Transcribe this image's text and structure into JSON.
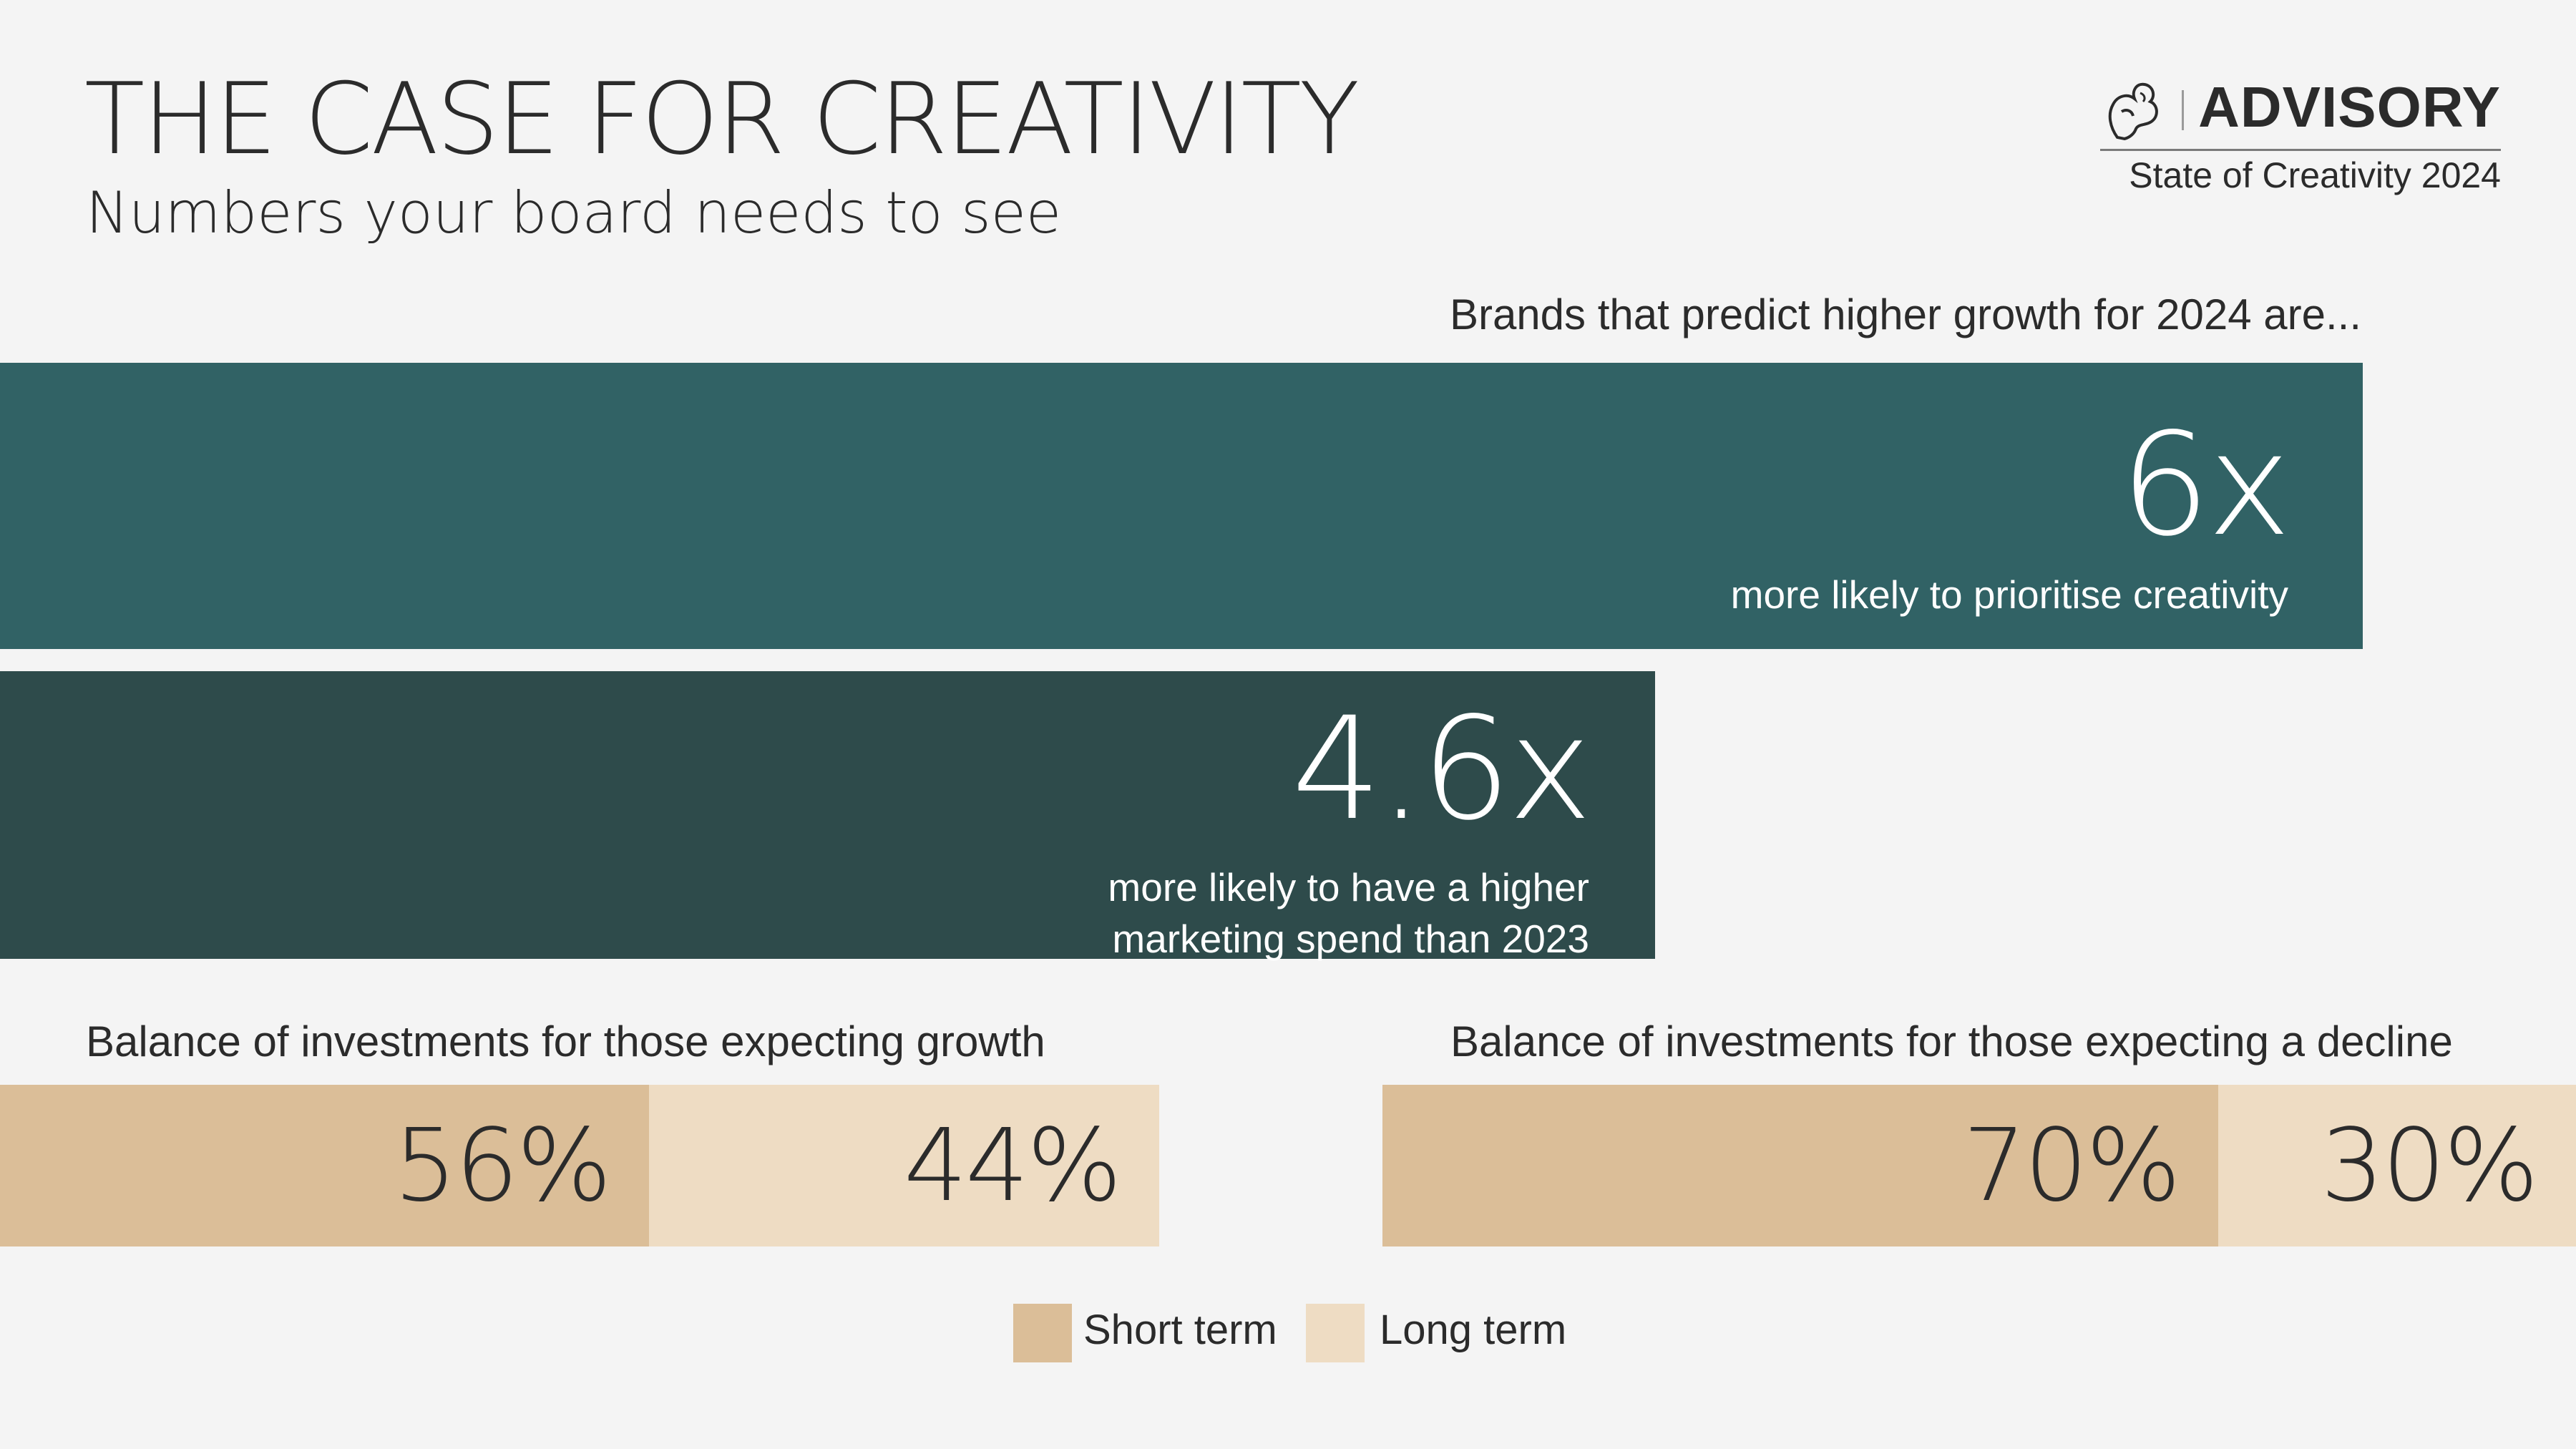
{
  "header": {
    "title": "THE CASE FOR CREATIVITY",
    "subtitle": "Numbers your board needs to see"
  },
  "brand": {
    "logo_icon": "lion-icon",
    "name": "ADVISORY",
    "report": "State of Creativity 2024"
  },
  "colors": {
    "background": "#f4f4f4",
    "teal": "#316265",
    "dark_teal": "#2e4b4b",
    "short_term": "#dbbe98",
    "long_term": "#eedcc3",
    "text": "#2b2b2b"
  },
  "chart_data": [
    {
      "type": "bar",
      "title": "Brands that predict higher growth for 2024 are...",
      "orientation": "horizontal",
      "categories": [
        "more likely to prioritise creativity",
        "more likely to have a higher marketing spend than 2023"
      ],
      "values": [
        6,
        4.6
      ],
      "value_labels": [
        "6x",
        "4.6x"
      ],
      "unit": "x",
      "grid": false
    },
    {
      "type": "bar",
      "stacked": true,
      "orientation": "horizontal",
      "title": "Balance of investments for those expecting growth",
      "series": [
        {
          "name": "Short term",
          "values": [
            56
          ],
          "label": "56%"
        },
        {
          "name": "Long term",
          "values": [
            44
          ],
          "label": "44%"
        }
      ],
      "unit": "%",
      "grid": false
    },
    {
      "type": "bar",
      "stacked": true,
      "orientation": "horizontal",
      "title": "Balance of investments for those expecting a decline",
      "series": [
        {
          "name": "Short term",
          "values": [
            70
          ],
          "label": "70%"
        },
        {
          "name": "Long term",
          "values": [
            30
          ],
          "label": "30%"
        }
      ],
      "unit": "%",
      "grid": false
    }
  ],
  "legend": {
    "placement": "bottom-center",
    "items": [
      {
        "label": "Short term"
      },
      {
        "label": "Long term"
      }
    ]
  }
}
